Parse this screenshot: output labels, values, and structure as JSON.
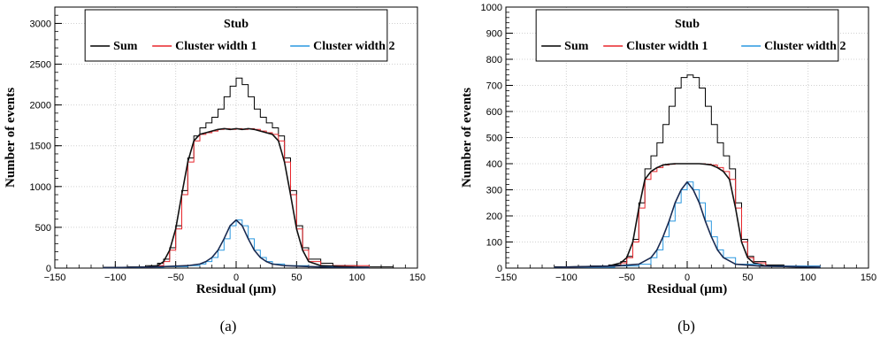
{
  "chart_data": [
    {
      "type": "line",
      "caption": "(a)",
      "legend_title": "Stub",
      "xlabel": "Residual (μm)",
      "ylabel": "Number of events",
      "xlim": [
        -150,
        150
      ],
      "ylim": [
        0,
        3200
      ],
      "xticks": [
        -150,
        -100,
        -50,
        0,
        50,
        100,
        150
      ],
      "yticks": [
        0,
        500,
        1000,
        1500,
        2000,
        2500,
        3000
      ],
      "grid": true,
      "legend_position": "top",
      "series": [
        {
          "name": "Sum",
          "color": "#000000",
          "x": [
            -110,
            -90,
            -75,
            -65,
            -60,
            -55,
            -50,
            -45,
            -40,
            -35,
            -30,
            -25,
            -20,
            -15,
            -10,
            -5,
            0,
            5,
            10,
            15,
            20,
            25,
            30,
            35,
            40,
            45,
            50,
            55,
            60,
            70,
            80,
            100,
            130
          ],
          "y": [
            10,
            15,
            30,
            60,
            110,
            250,
            520,
            950,
            1350,
            1620,
            1720,
            1780,
            1850,
            1950,
            2100,
            2230,
            2330,
            2250,
            2100,
            1950,
            1850,
            1780,
            1720,
            1620,
            1350,
            950,
            520,
            250,
            110,
            60,
            30,
            15,
            10
          ]
        },
        {
          "name": "Cluster width 1",
          "color": "#e8262c",
          "x": [
            -110,
            -75,
            -65,
            -60,
            -55,
            -50,
            -45,
            -40,
            -35,
            -30,
            -25,
            -20,
            -15,
            -10,
            -5,
            0,
            5,
            10,
            15,
            20,
            25,
            30,
            35,
            40,
            45,
            50,
            55,
            60,
            70,
            110
          ],
          "y": [
            5,
            10,
            30,
            80,
            220,
            480,
            900,
            1300,
            1560,
            1640,
            1660,
            1680,
            1700,
            1710,
            1700,
            1710,
            1700,
            1710,
            1700,
            1680,
            1660,
            1640,
            1560,
            1300,
            900,
            480,
            220,
            80,
            30,
            5
          ]
        },
        {
          "name": "Cluster width 2",
          "color": "#2a98e0",
          "x": [
            -110,
            -80,
            -60,
            -40,
            -30,
            -25,
            -20,
            -15,
            -10,
            -5,
            0,
            5,
            10,
            15,
            20,
            25,
            30,
            40,
            60,
            80,
            110
          ],
          "y": [
            5,
            10,
            18,
            30,
            50,
            80,
            130,
            220,
            360,
            520,
            590,
            520,
            360,
            220,
            130,
            80,
            50,
            30,
            18,
            10,
            5
          ]
        }
      ]
    },
    {
      "type": "line",
      "caption": "(b)",
      "legend_title": "Stub",
      "xlabel": "Residual (μm)",
      "ylabel": "Number of events",
      "xlim": [
        -150,
        150
      ],
      "ylim": [
        0,
        1000
      ],
      "xticks": [
        -150,
        -100,
        -50,
        0,
        50,
        100,
        150
      ],
      "yticks": [
        0,
        100,
        200,
        300,
        400,
        500,
        600,
        700,
        800,
        900,
        1000
      ],
      "grid": true,
      "legend_position": "top",
      "series": [
        {
          "name": "Sum",
          "color": "#000000",
          "x": [
            -110,
            -80,
            -65,
            -55,
            -50,
            -45,
            -40,
            -35,
            -30,
            -25,
            -20,
            -15,
            -10,
            -5,
            0,
            5,
            10,
            15,
            20,
            25,
            30,
            35,
            40,
            45,
            50,
            55,
            65,
            80,
            110
          ],
          "y": [
            5,
            8,
            12,
            25,
            45,
            110,
            250,
            380,
            430,
            480,
            550,
            620,
            690,
            730,
            740,
            730,
            690,
            620,
            550,
            480,
            430,
            380,
            250,
            110,
            45,
            25,
            12,
            8,
            5
          ]
        },
        {
          "name": "Cluster width 1",
          "color": "#e8262c",
          "x": [
            -110,
            -65,
            -55,
            -50,
            -45,
            -40,
            -35,
            -30,
            -25,
            -20,
            -15,
            -10,
            -5,
            0,
            5,
            10,
            15,
            20,
            25,
            30,
            35,
            40,
            45,
            50,
            55,
            65,
            110
          ],
          "y": [
            3,
            8,
            20,
            40,
            100,
            230,
            340,
            370,
            385,
            395,
            398,
            400,
            400,
            400,
            400,
            400,
            398,
            395,
            385,
            370,
            340,
            230,
            100,
            40,
            20,
            8,
            3
          ]
        },
        {
          "name": "Cluster width 2",
          "color": "#2a98e0",
          "x": [
            -110,
            -60,
            -40,
            -30,
            -25,
            -20,
            -15,
            -10,
            -5,
            0,
            5,
            10,
            15,
            20,
            25,
            30,
            40,
            60,
            110
          ],
          "y": [
            3,
            8,
            15,
            40,
            70,
            120,
            180,
            250,
            300,
            330,
            300,
            250,
            180,
            120,
            70,
            40,
            15,
            8,
            3
          ]
        }
      ]
    }
  ]
}
